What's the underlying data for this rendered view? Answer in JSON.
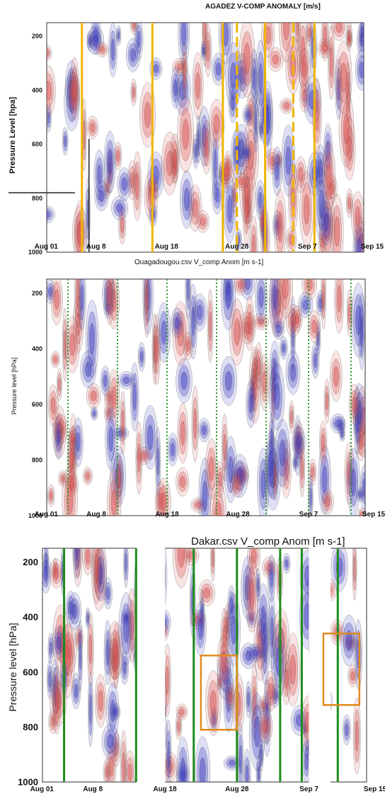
{
  "chart_data": [
    {
      "type": "heatmap",
      "title": "AGADEZ V-COMP ANOMALY [m/s]",
      "ylabel": "Pressure Level [hpa]",
      "x_ticks": [
        "Aug 01",
        "Aug 8",
        "Aug 18",
        "Aug 28",
        "Sep 7",
        "Sep 15"
      ],
      "y_ticks": [
        "200",
        "400",
        "600",
        "800",
        "1000"
      ],
      "ylim": [
        1000,
        150
      ],
      "xlim": [
        "Aug 01",
        "Sep 15"
      ],
      "colors": {
        "positive": "#d9534f",
        "negative": "#3b3bbf",
        "marker": "#f0b400"
      },
      "markers": {
        "solid_lines": [
          "Aug 6",
          "Aug 16",
          "Aug 26",
          "Sep 1",
          "Sep 8"
        ],
        "dashed_lines": [
          "Aug 28",
          "Sep 5"
        ],
        "annotation_lines": [
          {
            "type": "horizontal",
            "y": 780,
            "x_from": "Aug 01",
            "x_to": "Aug 5"
          },
          {
            "type": "vertical",
            "x": "Aug 7",
            "y_from": 580,
            "y_to": 1000
          }
        ]
      }
    },
    {
      "type": "heatmap",
      "title": "Ouagadougou.csv V_comp Anom [m s-1]",
      "ylabel": "Pressure level [hPa]",
      "x_ticks": [
        "Aug 01",
        "Aug 8",
        "Aug 18",
        "Aug 28",
        "Sep 7",
        "Sep 15"
      ],
      "y_ticks": [
        "200",
        "400",
        "600",
        "800",
        "1000"
      ],
      "ylim": [
        1000,
        150
      ],
      "xlim": [
        "Aug 01",
        "Sep 15"
      ],
      "colors": {
        "positive": "#d9534f",
        "negative": "#3b3bbf",
        "marker": "#2e9a2e"
      },
      "markers": {
        "dotted_lines": [
          "Aug 4",
          "Aug 11",
          "Aug 18",
          "Aug 25",
          "Sep 1",
          "Sep 7",
          "Sep 13"
        ]
      }
    },
    {
      "type": "heatmap",
      "title": "Dakar.csv V_comp Anom [m s-1]",
      "ylabel": "Pressure level [hPa]",
      "x_ticks": [
        "Aug 01",
        "Aug 8",
        "Aug 18",
        "Aug 28",
        "Sep 7",
        "Sep 15"
      ],
      "y_ticks": [
        "200",
        "400",
        "600",
        "800",
        "1000"
      ],
      "ylim": [
        1000,
        150
      ],
      "xlim": [
        "Aug 01",
        "Sep 15"
      ],
      "colors": {
        "positive": "#d9534f",
        "negative": "#3b3bbf",
        "marker": "#1e8a1e",
        "box": "#e08a1e"
      },
      "markers": {
        "solid_lines": [
          "Aug 4",
          "Aug 14",
          "Aug 22",
          "Aug 28",
          "Sep 3",
          "Sep 6",
          "Sep 11"
        ],
        "boxes": [
          {
            "x_from": "Aug 23",
            "x_to": "Aug 28",
            "y_from": 540,
            "y_to": 810
          },
          {
            "x_from": "Sep 9",
            "x_to": "Sep 14",
            "y_from": 460,
            "y_to": 720
          }
        ],
        "gaps": [
          [
            "Aug 14",
            "Aug 18"
          ],
          [
            "Sep 7",
            "Sep 10"
          ]
        ]
      }
    }
  ]
}
